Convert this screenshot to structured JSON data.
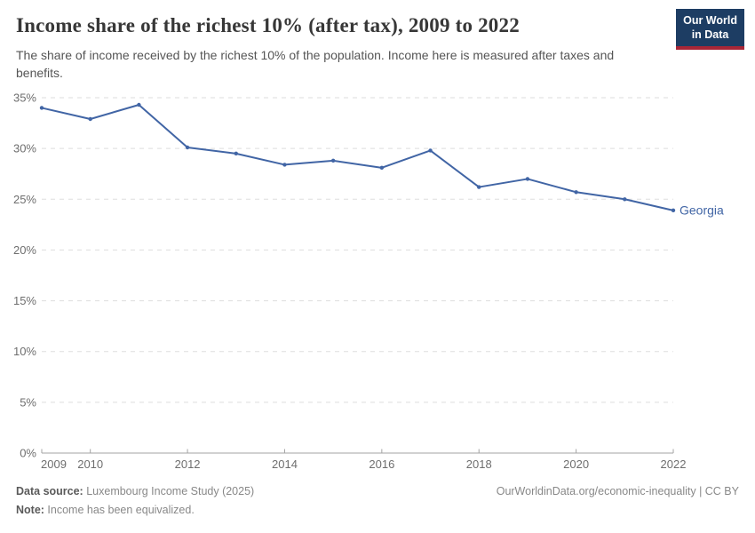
{
  "header": {
    "title": "Income share of the richest 10% (after tax), 2009 to 2022",
    "subtitle": "The share of income received by the richest 10% of the population. Income here is measured after taxes and benefits.",
    "logo": {
      "line1": "Our World",
      "line2": "in Data",
      "bg_color": "#1d3d63",
      "accent_color": "#a82637"
    }
  },
  "chart_data": {
    "type": "line",
    "title": "Income share of the richest 10% (after tax), 2009 to 2022",
    "x": [
      2009,
      2010,
      2011,
      2012,
      2013,
      2014,
      2015,
      2016,
      2017,
      2018,
      2019,
      2020,
      2021,
      2022
    ],
    "series": [
      {
        "name": "Georgia",
        "color": "#4165a5",
        "values": [
          34.0,
          32.9,
          34.3,
          30.1,
          29.5,
          28.4,
          28.8,
          28.1,
          29.8,
          26.2,
          27.0,
          25.7,
          25.0,
          23.9
        ]
      }
    ],
    "xlim": [
      2009,
      2022
    ],
    "ylim": [
      0,
      35
    ],
    "y_ticks": [
      0,
      5,
      10,
      15,
      20,
      25,
      30,
      35
    ],
    "y_tick_suffix": "%",
    "x_axis_labels": [
      2009,
      2010,
      2012,
      2014,
      2016,
      2018,
      2020,
      2022
    ],
    "grid": "horizontal-dashed",
    "legend_position": "end-of-line-label",
    "colors": {
      "gridline": "#dedede",
      "axis": "#a3a3a3",
      "tick_text": "#6e6e6e"
    }
  },
  "footer": {
    "datasource_label": "Data source:",
    "datasource_value": " Luxembourg Income Study (2025)",
    "note_label": "Note:",
    "note_value": " Income has been equivalized.",
    "right_text": "OurWorldinData.org/economic-inequality | CC BY"
  }
}
